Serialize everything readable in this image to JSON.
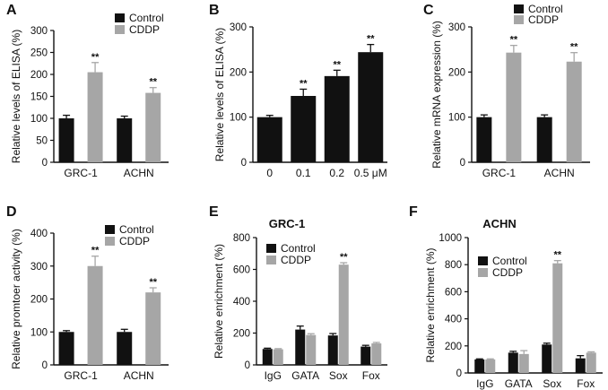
{
  "colors": {
    "control": "#111111",
    "cddp": "#a6a6a6",
    "axis": "#111111"
  },
  "chart_data": [
    {
      "panel_label": "A",
      "type": "bar",
      "title": "",
      "ylabel": "Relative levels of ELISA (%)",
      "xlabel": "",
      "ylim": [
        0,
        300
      ],
      "yticks": [
        "0",
        "50",
        "100",
        "150",
        "200",
        "250",
        "300"
      ],
      "categories": [
        "GRC-1",
        "ACHN"
      ],
      "series": [
        {
          "name": "Control",
          "color": "control",
          "values": [
            100,
            100
          ],
          "errors": [
            7,
            5
          ],
          "labels": [
            "",
            ""
          ]
        },
        {
          "name": "CDDP",
          "color": "cddp",
          "values": [
            205,
            158
          ],
          "errors": [
            22,
            12
          ],
          "labels": [
            "**",
            "**"
          ]
        }
      ],
      "legend": "top-right"
    },
    {
      "panel_label": "B",
      "type": "bar",
      "title": "",
      "ylabel": "Relative levels of ELISA (%)",
      "xlabel": "",
      "ylim": [
        0,
        300
      ],
      "yticks": [
        "0",
        "100",
        "200",
        "300"
      ],
      "categories": [
        "0",
        "0.1",
        "0.2",
        "0.5 μM"
      ],
      "series": [
        {
          "name": "",
          "color": "control",
          "values": [
            100,
            147,
            191,
            244
          ],
          "errors": [
            4,
            15,
            13,
            17
          ],
          "labels": [
            "",
            "**",
            "**",
            "**"
          ]
        }
      ],
      "legend": "none"
    },
    {
      "panel_label": "C",
      "type": "bar",
      "title": "",
      "ylabel": "Relative mRNA expression (%)",
      "xlabel": "",
      "ylim": [
        0,
        300
      ],
      "yticks": [
        "0",
        "100",
        "200",
        "300"
      ],
      "categories": [
        "GRC-1",
        "ACHN"
      ],
      "series": [
        {
          "name": "Control",
          "color": "control",
          "values": [
            100,
            100
          ],
          "errors": [
            5,
            5
          ],
          "labels": [
            "",
            ""
          ]
        },
        {
          "name": "CDDP",
          "color": "cddp",
          "values": [
            243,
            223
          ],
          "errors": [
            16,
            20
          ],
          "labels": [
            "**",
            "**"
          ]
        }
      ],
      "legend": "top-right"
    },
    {
      "panel_label": "D",
      "type": "bar",
      "title": "",
      "ylabel": "Relative promtoer activity (%)",
      "xlabel": "",
      "ylim": [
        0,
        400
      ],
      "yticks": [
        "0",
        "100",
        "200",
        "300",
        "400"
      ],
      "categories": [
        "GRC-1",
        "ACHN"
      ],
      "series": [
        {
          "name": "Control",
          "color": "control",
          "values": [
            100,
            100
          ],
          "errors": [
            4,
            8
          ],
          "labels": [
            "",
            ""
          ]
        },
        {
          "name": "CDDP",
          "color": "cddp",
          "values": [
            300,
            220
          ],
          "errors": [
            30,
            14
          ],
          "labels": [
            "**",
            "**"
          ]
        }
      ],
      "legend": "top-right"
    },
    {
      "panel_label": "E",
      "type": "bar",
      "title": "GRC-1",
      "ylabel": "Relative enrichment (%)",
      "xlabel": "",
      "ylim": [
        0,
        800
      ],
      "yticks": [
        "0",
        "200",
        "400",
        "600",
        "800"
      ],
      "categories": [
        "IgG",
        "GATA",
        "Sox",
        "Fox"
      ],
      "series": [
        {
          "name": "Control",
          "color": "control",
          "values": [
            100,
            222,
            185,
            115
          ],
          "errors": [
            5,
            22,
            12,
            8
          ],
          "labels": [
            "",
            "",
            "",
            ""
          ]
        },
        {
          "name": "CDDP",
          "color": "cddp",
          "values": [
            98,
            188,
            630,
            135
          ],
          "errors": [
            4,
            8,
            12,
            6
          ],
          "labels": [
            "",
            "",
            "**",
            ""
          ]
        }
      ],
      "legend": "top-left"
    },
    {
      "panel_label": "F",
      "type": "bar",
      "title": "ACHN",
      "ylabel": "Relative enrichment (%)",
      "xlabel": "",
      "ylim": [
        0,
        1000
      ],
      "yticks": [
        "0",
        "200",
        "400",
        "600",
        "800",
        "1000"
      ],
      "categories": [
        "IgG",
        "GATA",
        "Sox",
        "Fox"
      ],
      "series": [
        {
          "name": "Control",
          "color": "control",
          "values": [
            100,
            150,
            210,
            108
          ],
          "errors": [
            4,
            10,
            10,
            20
          ],
          "labels": [
            "",
            "",
            "",
            ""
          ]
        },
        {
          "name": "CDDP",
          "color": "cddp",
          "values": [
            100,
            140,
            810,
            150
          ],
          "errors": [
            4,
            25,
            20,
            6
          ],
          "labels": [
            "",
            "",
            "**",
            ""
          ]
        }
      ],
      "legend": "top-left"
    }
  ]
}
